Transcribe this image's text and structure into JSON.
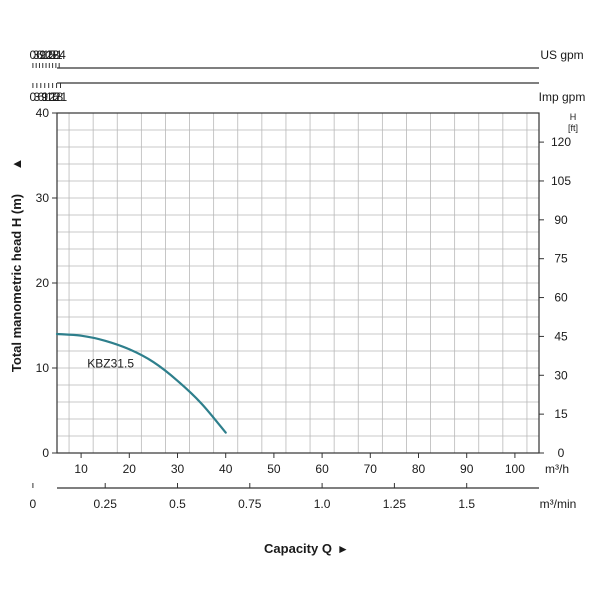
{
  "chart_data": {
    "type": "line",
    "title": "",
    "colors": {
      "curve": "#2e7f8c",
      "grid": "#b8b8b8",
      "axis": "#333333"
    },
    "y_axis_left": {
      "label": "Total manometric head H (m)",
      "arrow": "▲",
      "ticks": [
        "0",
        "10",
        "20",
        "30",
        "40"
      ],
      "range": [
        0,
        40
      ]
    },
    "y_axis_right": {
      "unit_top": "H",
      "unit_bottom": "[ft]",
      "ticks": [
        "0",
        "15",
        "30",
        "45",
        "60",
        "75",
        "90",
        "105",
        "120"
      ]
    },
    "x_axis_m3h": {
      "unit": "m³/h",
      "ticks": [
        "10",
        "20",
        "30",
        "40",
        "50",
        "60",
        "70",
        "80",
        "90",
        "100"
      ],
      "range": [
        5,
        105
      ]
    },
    "x_axis_m3min": {
      "unit": "m³/min",
      "ticks": [
        "0",
        "0.25",
        "0.5",
        "0.75",
        "1.0",
        "1.25",
        "1.5"
      ]
    },
    "x_axis_usgpm": {
      "unit": "US gpm",
      "ticks": [
        "0",
        "3",
        "6",
        "9",
        "12",
        "15",
        "18",
        "21",
        "24"
      ]
    },
    "x_axis_impgpm": {
      "unit": "Imp gpm",
      "ticks": [
        "0",
        "3",
        "6",
        "9",
        "12",
        "15",
        "18",
        "21"
      ]
    },
    "capacity_label": "Capacity Q",
    "capacity_arrow": "►",
    "series": [
      {
        "name": "KBZ31.5",
        "x": [
          5,
          10,
          15,
          20,
          25,
          30,
          35,
          40
        ],
        "y": [
          14,
          13.8,
          13.2,
          12.2,
          10.7,
          8.5,
          5.8,
          2.4
        ]
      }
    ]
  }
}
